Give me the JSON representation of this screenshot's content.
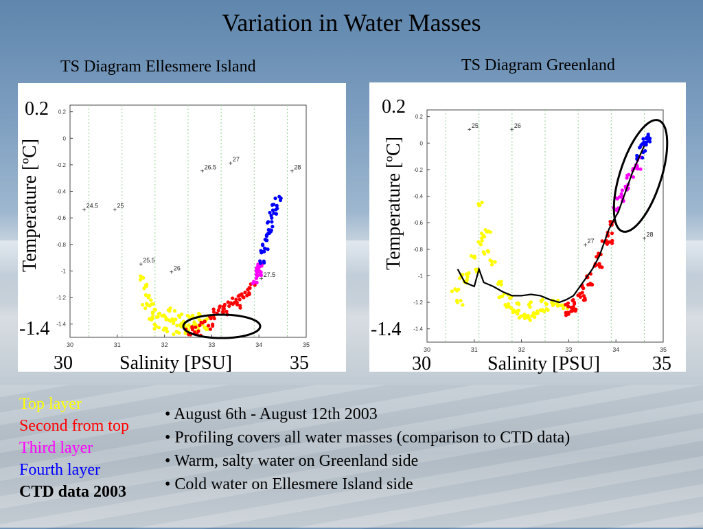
{
  "slide": {
    "title": "Variation in Water Masses"
  },
  "legend": [
    {
      "label": "Top layer",
      "color": "#ffff00"
    },
    {
      "label": "Second from top",
      "color": "#ff0000"
    },
    {
      "label": "Third layer",
      "color": "#ff00ff"
    },
    {
      "label": "Fourth layer",
      "color": "#0000ff"
    },
    {
      "label": "CTD data 2003",
      "color": "#000000",
      "bold": true
    }
  ],
  "bullets": [
    "August 6th - August 12th 2003",
    "Profiling covers all water masses (comparison to CTD data)",
    "Warm, salty water on Greenland side",
    "Cold water on Ellesmere Island side"
  ],
  "chart_data": [
    {
      "type": "scatter",
      "title": "TS Diagram Ellesmere Island",
      "xlabel": "Salinity [PSU]",
      "ylabel": "Temperature [ºC]",
      "xlim": [
        30,
        35
      ],
      "ylim": [
        -1.5,
        0.25
      ],
      "x_ticks": [
        "30",
        "31",
        "32",
        "33",
        "34",
        "35"
      ],
      "y_ticks": [
        "0.2",
        "0",
        "-0.2",
        "-0.4",
        "-0.6",
        "-0.8",
        "-1",
        "-1.2",
        "-1.4"
      ],
      "range_labels": {
        "y_top": "0.2",
        "y_bottom": "-1.4",
        "x_left": "30",
        "x_right": "35"
      },
      "density_labels": [
        {
          "label": "24.5",
          "x": 30.3,
          "y": -0.54
        },
        {
          "label": "25",
          "x": 30.95,
          "y": -0.54
        },
        {
          "label": "26.5",
          "x": 32.8,
          "y": -0.25
        },
        {
          "label": "27",
          "x": 33.4,
          "y": -0.19
        },
        {
          "label": "28",
          "x": 34.7,
          "y": -0.25
        },
        {
          "label": "25.5",
          "x": 31.5,
          "y": -0.95
        },
        {
          "label": "26",
          "x": 32.15,
          "y": -1.01
        },
        {
          "label": "27.5",
          "x": 34.05,
          "y": -1.06
        }
      ],
      "series": [
        {
          "name": "Top layer",
          "color": "#ffff00",
          "points": [
            [
              31.55,
              -1.05
            ],
            [
              31.6,
              -1.12
            ],
            [
              31.65,
              -1.2
            ],
            [
              31.7,
              -1.26
            ],
            [
              31.8,
              -1.3
            ],
            [
              31.9,
              -1.33
            ],
            [
              32.0,
              -1.35
            ],
            [
              32.1,
              -1.37
            ],
            [
              32.2,
              -1.38
            ],
            [
              32.3,
              -1.4
            ],
            [
              32.4,
              -1.4
            ],
            [
              32.5,
              -1.41
            ],
            [
              32.6,
              -1.41
            ],
            [
              32.7,
              -1.4
            ],
            [
              32.8,
              -1.39
            ],
            [
              32.9,
              -1.38
            ],
            [
              33.0,
              -1.36
            ],
            [
              31.75,
              -1.35
            ],
            [
              31.85,
              -1.42
            ],
            [
              32.05,
              -1.44
            ],
            [
              32.25,
              -1.46
            ],
            [
              32.45,
              -1.45
            ],
            [
              32.65,
              -1.44
            ],
            [
              32.85,
              -1.43
            ],
            [
              31.6,
              -1.26
            ],
            [
              32.15,
              -1.3
            ],
            [
              32.35,
              -1.33
            ],
            [
              32.55,
              -1.35
            ],
            [
              32.75,
              -1.34
            ]
          ]
        },
        {
          "name": "Second from top",
          "color": "#ff0000",
          "points": [
            [
              32.6,
              -1.44
            ],
            [
              32.8,
              -1.4
            ],
            [
              33.0,
              -1.34
            ],
            [
              33.1,
              -1.3
            ],
            [
              33.2,
              -1.28
            ],
            [
              33.3,
              -1.26
            ],
            [
              33.4,
              -1.24
            ],
            [
              33.5,
              -1.22
            ],
            [
              33.6,
              -1.2
            ],
            [
              33.7,
              -1.18
            ],
            [
              33.8,
              -1.14
            ],
            [
              33.9,
              -1.1
            ],
            [
              32.7,
              -1.47
            ],
            [
              32.5,
              -1.46
            ],
            [
              33.0,
              -1.42
            ],
            [
              33.3,
              -1.32
            ],
            [
              33.6,
              -1.26
            ],
            [
              33.85,
              -1.18
            ]
          ]
        },
        {
          "name": "Third layer",
          "color": "#ff00ff",
          "points": [
            [
              33.9,
              -1.08
            ],
            [
              33.95,
              -1.04
            ],
            [
              34.0,
              -1.0
            ],
            [
              34.02,
              -0.98
            ],
            [
              34.05,
              -0.95
            ],
            [
              33.98,
              -1.02
            ]
          ]
        },
        {
          "name": "Fourth layer",
          "color": "#0000ff",
          "points": [
            [
              34.05,
              -0.93
            ],
            [
              34.1,
              -0.85
            ],
            [
              34.15,
              -0.78
            ],
            [
              34.2,
              -0.72
            ],
            [
              34.25,
              -0.65
            ],
            [
              34.3,
              -0.58
            ],
            [
              34.35,
              -0.5
            ],
            [
              34.4,
              -0.46
            ],
            [
              34.12,
              -0.82
            ],
            [
              34.22,
              -0.7
            ],
            [
              34.32,
              -0.55
            ]
          ]
        }
      ],
      "ctd_line": []
    },
    {
      "type": "scatter",
      "title": "TS Diagram Greenland",
      "xlabel": "Salinity [PSU]",
      "ylabel": "Temperature [ºC]",
      "xlim": [
        30,
        35
      ],
      "ylim": [
        -1.5,
        0.25
      ],
      "x_ticks": [
        "30",
        "31",
        "32",
        "33",
        "34",
        "35"
      ],
      "y_ticks": [
        "0.2",
        "0",
        "-0.2",
        "-0.4",
        "-0.6",
        "-0.8",
        "-1",
        "-1.2",
        "-1.4"
      ],
      "range_labels": {
        "y_top": "0.2",
        "y_bottom": "-1.4",
        "x_left": "30",
        "x_right": "35"
      },
      "density_labels": [
        {
          "label": "25",
          "x": 30.9,
          "y": 0.1
        },
        {
          "label": "26",
          "x": 31.8,
          "y": 0.1
        },
        {
          "label": "27",
          "x": 33.35,
          "y": -0.77
        },
        {
          "label": "28",
          "x": 34.6,
          "y": -0.72
        }
      ],
      "series": [
        {
          "name": "Top layer",
          "color": "#ffff00",
          "points": [
            [
              30.6,
              -1.12
            ],
            [
              30.7,
              -1.2
            ],
            [
              30.8,
              -1.05
            ],
            [
              30.9,
              -1.0
            ],
            [
              31.0,
              -0.85
            ],
            [
              31.1,
              -0.75
            ],
            [
              31.2,
              -0.7
            ],
            [
              31.3,
              -0.65
            ],
            [
              31.15,
              -0.45
            ],
            [
              31.4,
              -0.9
            ],
            [
              31.5,
              -1.05
            ],
            [
              31.6,
              -1.15
            ],
            [
              31.7,
              -1.22
            ],
            [
              31.8,
              -1.26
            ],
            [
              31.9,
              -1.28
            ],
            [
              32.0,
              -1.3
            ],
            [
              32.1,
              -1.3
            ],
            [
              32.2,
              -1.32
            ],
            [
              32.3,
              -1.3
            ],
            [
              32.4,
              -1.28
            ],
            [
              32.5,
              -1.25
            ],
            [
              32.6,
              -1.22
            ],
            [
              32.7,
              -1.2
            ],
            [
              32.8,
              -1.22
            ],
            [
              32.9,
              -1.24
            ],
            [
              31.95,
              -1.2
            ],
            [
              32.15,
              -1.22
            ],
            [
              32.45,
              -1.2
            ],
            [
              31.75,
              -1.15
            ],
            [
              30.75,
              -1.0
            ],
            [
              31.05,
              -0.95
            ],
            [
              31.25,
              -0.82
            ]
          ]
        },
        {
          "name": "Second from top",
          "color": "#ff0000",
          "points": [
            [
              32.95,
              -1.28
            ],
            [
              33.05,
              -1.25
            ],
            [
              33.15,
              -1.2
            ],
            [
              33.25,
              -1.14
            ],
            [
              33.35,
              -1.08
            ],
            [
              33.45,
              -1.0
            ],
            [
              33.55,
              -0.92
            ],
            [
              33.65,
              -0.85
            ],
            [
              33.75,
              -0.75
            ],
            [
              33.85,
              -0.68
            ],
            [
              33.95,
              -0.6
            ],
            [
              33.1,
              -1.27
            ],
            [
              33.3,
              -1.18
            ],
            [
              33.5,
              -1.05
            ],
            [
              33.7,
              -0.92
            ],
            [
              33.9,
              -0.74
            ],
            [
              32.98,
              -1.22
            ]
          ]
        },
        {
          "name": "Third layer",
          "color": "#ff00ff",
          "points": [
            [
              34.0,
              -0.5
            ],
            [
              34.1,
              -0.42
            ],
            [
              34.2,
              -0.35
            ],
            [
              34.3,
              -0.25
            ],
            [
              34.4,
              -0.2
            ],
            [
              34.5,
              -0.12
            ],
            [
              34.05,
              -0.4
            ],
            [
              34.25,
              -0.32
            ],
            [
              34.45,
              -0.18
            ]
          ]
        },
        {
          "name": "Fourth layer",
          "color": "#0000ff",
          "points": [
            [
              34.5,
              -0.1
            ],
            [
              34.55,
              -0.05
            ],
            [
              34.6,
              0.0
            ],
            [
              34.65,
              0.02
            ],
            [
              34.7,
              0.05
            ],
            [
              34.58,
              -0.02
            ],
            [
              34.68,
              0.03
            ]
          ]
        }
      ],
      "ctd_line": [
        [
          30.65,
          -0.95
        ],
        [
          30.8,
          -1.05
        ],
        [
          31.0,
          -1.08
        ],
        [
          31.1,
          -0.95
        ],
        [
          31.2,
          -1.05
        ],
        [
          31.4,
          -1.08
        ],
        [
          31.6,
          -1.12
        ],
        [
          31.8,
          -1.15
        ],
        [
          32.0,
          -1.15
        ],
        [
          32.2,
          -1.14
        ],
        [
          32.4,
          -1.15
        ],
        [
          32.6,
          -1.18
        ],
        [
          32.8,
          -1.2
        ],
        [
          32.95,
          -1.18
        ],
        [
          33.1,
          -1.15
        ],
        [
          33.3,
          -1.05
        ],
        [
          33.5,
          -0.95
        ],
        [
          33.65,
          -0.85
        ],
        [
          33.75,
          -0.75
        ],
        [
          33.85,
          -0.65
        ],
        [
          33.95,
          -0.58
        ],
        [
          34.05,
          -0.52
        ],
        [
          34.15,
          -0.42
        ],
        [
          34.25,
          -0.32
        ],
        [
          34.35,
          -0.22
        ],
        [
          34.5,
          -0.1
        ],
        [
          34.6,
          -0.02
        ]
      ]
    }
  ]
}
